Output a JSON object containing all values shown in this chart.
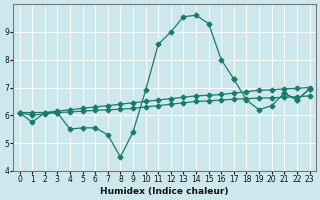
{
  "xlabel": "Humidex (Indice chaleur)",
  "xlim": [
    -0.5,
    23.5
  ],
  "ylim": [
    4,
    10
  ],
  "yticks": [
    4,
    5,
    6,
    7,
    8,
    9
  ],
  "xticks": [
    0,
    1,
    2,
    3,
    4,
    5,
    6,
    7,
    8,
    9,
    10,
    11,
    12,
    13,
    14,
    15,
    16,
    17,
    18,
    19,
    20,
    21,
    22,
    23
  ],
  "background_color": "#cde8ec",
  "grid_color": "#ffffff",
  "line_color": "#1a7a6e",
  "line1_y": [
    6.1,
    5.75,
    6.1,
    6.1,
    5.5,
    5.55,
    5.55,
    5.3,
    4.5,
    5.4,
    6.9,
    8.55,
    9.0,
    9.55,
    9.6,
    9.3,
    8.0,
    7.3,
    null,
    null,
    null,
    6.8,
    6.55,
    6.95
  ],
  "line1_x": [
    0,
    1,
    2,
    3,
    4,
    5,
    6,
    7,
    8,
    9,
    10,
    11,
    12,
    13,
    14,
    15,
    16,
    17,
    18,
    19,
    20,
    21,
    22,
    23
  ],
  "line2_y": [
    6.1,
    null,
    null,
    null,
    null,
    null,
    null,
    null,
    null,
    null,
    null,
    null,
    null,
    null,
    null,
    null,
    null,
    7.3,
    6.55,
    6.2,
    6.35,
    6.8,
    6.55,
    6.95
  ],
  "line2_x": [
    0,
    1,
    2,
    3,
    4,
    5,
    6,
    7,
    8,
    9,
    10,
    11,
    12,
    13,
    14,
    15,
    16,
    17,
    18,
    19,
    20,
    21,
    22,
    23
  ],
  "line3_y": [
    6.1,
    6.1,
    6.1,
    6.15,
    6.2,
    6.25,
    6.3,
    6.35,
    6.4,
    6.45,
    6.5,
    6.55,
    6.6,
    6.65,
    6.7,
    6.72,
    6.75,
    6.8,
    6.85,
    6.9,
    6.92,
    6.95,
    6.97,
    7.0
  ],
  "line3_x": [
    0,
    1,
    2,
    3,
    4,
    5,
    6,
    7,
    8,
    9,
    10,
    11,
    12,
    13,
    14,
    15,
    16,
    17,
    18,
    19,
    20,
    21,
    22,
    23
  ],
  "line4_y": [
    6.1,
    6.0,
    6.05,
    6.1,
    6.12,
    6.15,
    6.18,
    6.2,
    6.22,
    6.25,
    6.3,
    6.35,
    6.4,
    6.45,
    6.5,
    6.52,
    6.55,
    6.58,
    6.6,
    6.62,
    6.63,
    6.65,
    6.67,
    6.7
  ],
  "line4_x": [
    0,
    1,
    2,
    3,
    4,
    5,
    6,
    7,
    8,
    9,
    10,
    11,
    12,
    13,
    14,
    15,
    16,
    17,
    18,
    19,
    20,
    21,
    22,
    23
  ]
}
